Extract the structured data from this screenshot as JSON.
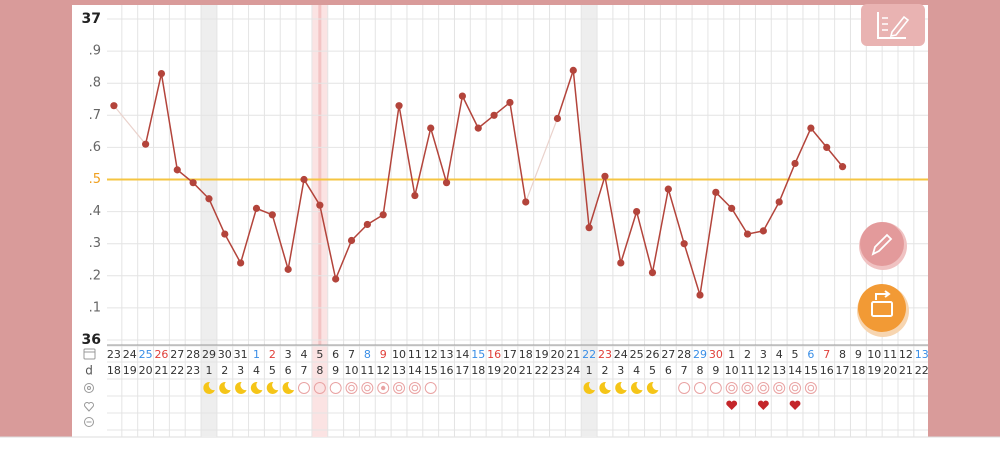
{
  "chart_data": {
    "type": "line",
    "categories": [
      23,
      24,
      25,
      26,
      27,
      28,
      29,
      30,
      31,
      1,
      2,
      3,
      4,
      5,
      6,
      7,
      8,
      9,
      10,
      11,
      12,
      13,
      14,
      15,
      16,
      17,
      18,
      19,
      20,
      21,
      22,
      23,
      24,
      25,
      26,
      27,
      28,
      29,
      30,
      1,
      2,
      3,
      4,
      5,
      6,
      7,
      8,
      9,
      10,
      11,
      12,
      13
    ],
    "cycle_day_label": "d",
    "cycle_days": [
      18,
      19,
      20,
      21,
      22,
      23,
      1,
      2,
      3,
      4,
      5,
      6,
      7,
      8,
      9,
      10,
      11,
      12,
      13,
      14,
      15,
      16,
      17,
      18,
      19,
      20,
      21,
      22,
      23,
      24,
      1,
      2,
      3,
      4,
      5,
      6,
      7,
      8,
      9,
      10,
      11,
      12,
      13,
      14,
      15,
      16,
      17,
      18,
      19,
      20,
      21,
      22
    ],
    "series": [
      {
        "color": "#b3443b",
        "values": [
          36.73,
          null,
          36.61,
          36.83,
          36.53,
          36.49,
          36.44,
          36.33,
          36.24,
          36.41,
          36.39,
          36.22,
          36.5,
          36.42,
          36.19,
          36.31,
          36.36,
          36.39,
          36.73,
          36.45,
          36.66,
          36.49,
          36.76,
          36.66,
          36.7,
          36.74,
          36.43,
          null,
          36.69,
          36.84,
          36.35,
          36.51,
          36.24,
          36.4,
          36.21,
          36.47,
          36.3,
          36.14,
          36.46,
          36.41,
          36.33,
          36.34,
          36.43,
          36.55,
          36.66,
          36.6,
          36.54,
          null,
          null,
          null,
          null,
          null
        ]
      }
    ],
    "ylim": [
      36,
      37
    ],
    "yticks": [
      37,
      {
        "value": 36.9,
        "label": ".9"
      },
      {
        "value": 36.8,
        "label": ".8"
      },
      {
        "value": 36.7,
        "label": ".7"
      },
      {
        "value": 36.6,
        "label": ".6"
      },
      {
        "value": 36.5,
        "label": ".5"
      },
      {
        "value": 36.4,
        "label": ".4"
      },
      {
        "value": 36.3,
        "label": ".3"
      },
      {
        "value": 36.2,
        "label": ".2"
      },
      {
        "value": 36.1,
        "label": ".1"
      },
      36
    ],
    "coverline": 36.5,
    "coverline_color": "#f5c542",
    "grid": true
  }
}
